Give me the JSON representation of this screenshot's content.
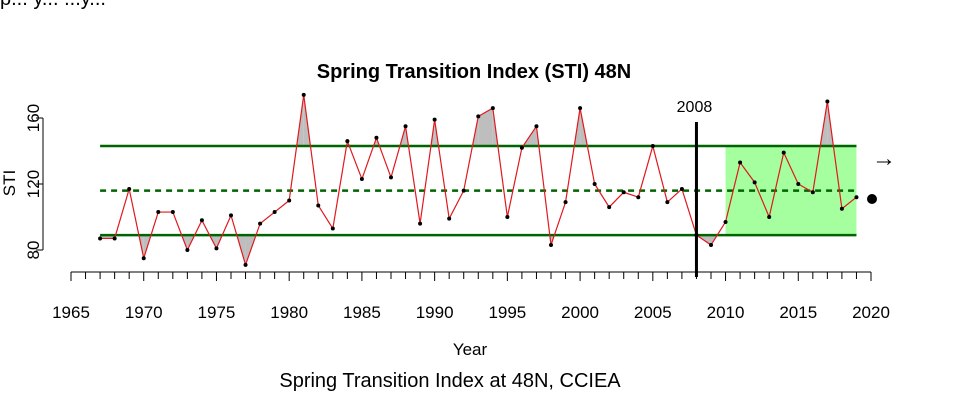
{
  "top_text_fragment": "p... y... ...y...",
  "caption": "Spring Transition Index at 48N, CCIEA",
  "colors": {
    "line": "#e0191e",
    "points": "#000000",
    "mean_line": "#006400",
    "sd_lines": "#006400",
    "anomaly_fill": "#bebebe",
    "recent_window_fill": "#a6ff9e"
  },
  "chart_data": {
    "type": "line",
    "title": "Spring Transition Index (STI) 48N",
    "xlabel": "Year",
    "ylabel": "STI",
    "xlim": [
      1965,
      2020
    ],
    "x_ticks": [
      1965,
      1970,
      1975,
      1980,
      1985,
      1990,
      1995,
      2000,
      2005,
      2010,
      2015,
      2020
    ],
    "y_ticks": [
      80,
      120,
      160
    ],
    "x": [
      1967,
      1968,
      1969,
      1970,
      1971,
      1972,
      1973,
      1974,
      1975,
      1976,
      1977,
      1978,
      1979,
      1980,
      1981,
      1982,
      1983,
      1984,
      1985,
      1986,
      1987,
      1988,
      1989,
      1990,
      1991,
      1992,
      1993,
      1994,
      1995,
      1996,
      1997,
      1998,
      1999,
      2000,
      2001,
      2002,
      2003,
      2004,
      2005,
      2006,
      2007,
      2008,
      2009,
      2010,
      2011,
      2012,
      2013,
      2014,
      2015,
      2016,
      2017,
      2018,
      2019
    ],
    "values": [
      87,
      87,
      117,
      75,
      103,
      103,
      80,
      98,
      81,
      101,
      71,
      96,
      103,
      110,
      174,
      107,
      93,
      146,
      123,
      148,
      124,
      155,
      96,
      159,
      99,
      116,
      161,
      166,
      100,
      142,
      155,
      83,
      109,
      166,
      120,
      106,
      115,
      112,
      143,
      109,
      117,
      89,
      83,
      97,
      133,
      121,
      100,
      139,
      120,
      115,
      170,
      105,
      112
    ],
    "mean": 116,
    "sd_upper": 143,
    "sd_lower": 89,
    "vline": {
      "x": 2008,
      "label": "2008"
    },
    "recent_window": [
      2010,
      2019
    ],
    "trend_symbol": "→",
    "mean_symbol": "●"
  }
}
